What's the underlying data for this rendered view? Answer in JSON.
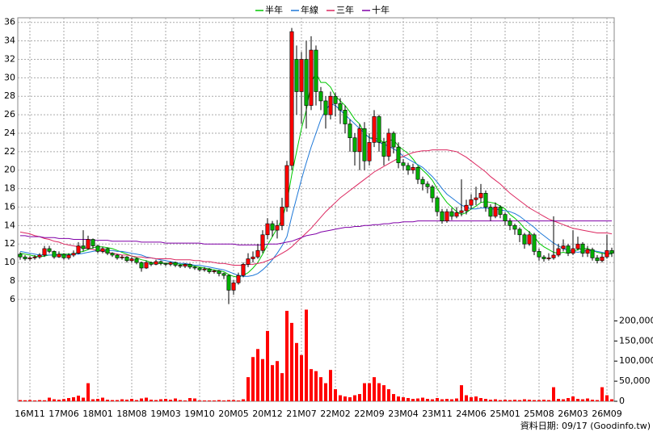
{
  "chart_data": {
    "type": "candlestick",
    "footer": "資料日期: 09/17 (Goodinfo.tw)",
    "grid": true,
    "up_color": "#ff0000",
    "down_color": "#00b000",
    "volume_color": "#ff0000",
    "categories": [
      null,
      null,
      "16M11",
      null,
      null,
      null,
      null,
      null,
      null,
      "17M06",
      null,
      null,
      null,
      null,
      null,
      null,
      "18M01",
      null,
      null,
      null,
      null,
      null,
      null,
      "18M08",
      null,
      null,
      null,
      null,
      null,
      null,
      "19M03",
      null,
      null,
      null,
      null,
      null,
      null,
      "19M10",
      null,
      null,
      null,
      null,
      null,
      null,
      "20M05",
      null,
      null,
      null,
      null,
      null,
      null,
      "20M12",
      null,
      null,
      null,
      null,
      null,
      null,
      "21M07",
      null,
      null,
      null,
      null,
      null,
      null,
      "22M02",
      null,
      null,
      null,
      null,
      null,
      null,
      "22M09",
      null,
      null,
      null,
      null,
      null,
      null,
      "23M04",
      null,
      null,
      null,
      null,
      null,
      null,
      "23M11",
      null,
      null,
      null,
      null,
      null,
      null,
      "24M06",
      null,
      null,
      null,
      null,
      null,
      null,
      "25M01",
      null,
      null,
      null,
      null,
      null,
      null,
      "25M08",
      null,
      null,
      null,
      null,
      null,
      null,
      "26M03",
      null,
      null,
      null,
      null,
      null,
      null,
      "26M09",
      null
    ],
    "open": [
      10.9,
      10.6,
      10.4,
      10.5,
      10.6,
      10.8,
      11.5,
      11.2,
      10.6,
      10.9,
      10.5,
      10.8,
      11.0,
      11.8,
      11.5,
      12.5,
      11.8,
      11.2,
      11.5,
      11.0,
      10.8,
      10.5,
      10.6,
      10.2,
      10.4,
      10.0,
      9.4,
      10.0,
      9.8,
      10.1,
      9.9,
      9.8,
      10.0,
      9.7,
      9.6,
      9.8,
      9.5,
      9.4,
      9.2,
      9.3,
      9.0,
      9.1,
      8.8,
      8.6,
      7.0,
      7.8,
      8.6,
      9.8,
      10.4,
      10.6,
      11.3,
      13.0,
      14.2,
      13.5,
      14.0,
      16.0,
      20.5,
      32.0,
      28.5,
      32.0,
      27.0,
      33.0,
      28.5,
      27.5,
      26.0,
      28.0,
      27.2,
      26.5,
      25.0,
      23.5,
      22.0,
      24.5,
      21.0,
      23.0,
      25.8,
      23.0,
      21.5,
      24.0,
      22.5,
      20.8,
      20.5,
      20.0,
      20.3,
      19.0,
      18.5,
      18.2,
      17.0,
      15.5,
      14.5,
      15.5,
      15.0,
      15.4,
      15.6,
      16.2,
      16.8,
      17.0,
      17.5,
      16.0,
      15.0,
      16.0,
      15.2,
      14.5,
      14.0,
      13.6,
      13.0,
      12.0,
      13.0,
      11.2,
      10.6,
      10.4,
      10.5,
      10.8,
      11.5,
      11.8,
      11.0,
      11.5,
      12.0,
      11.0,
      11.4,
      10.5,
      10.2,
      10.6,
      11.3
    ],
    "high": [
      11.1,
      10.8,
      10.7,
      10.8,
      11.0,
      11.8,
      11.8,
      11.3,
      11.2,
      11.0,
      11.0,
      11.3,
      12.2,
      13.5,
      12.9,
      12.6,
      11.9,
      11.7,
      11.6,
      11.1,
      10.9,
      10.8,
      10.7,
      10.6,
      10.5,
      10.1,
      10.2,
      10.1,
      10.3,
      10.2,
      10.0,
      10.1,
      10.1,
      9.8,
      9.9,
      9.9,
      9.6,
      9.5,
      9.5,
      9.4,
      9.2,
      9.2,
      8.9,
      8.7,
      8.1,
      8.9,
      10.0,
      11.0,
      11.2,
      12.0,
      13.5,
      14.8,
      14.5,
      14.6,
      17.0,
      21.0,
      35.4,
      33.5,
      32.8,
      34.0,
      34.5,
      33.5,
      29.0,
      28.0,
      28.5,
      28.4,
      27.8,
      27.0,
      25.5,
      24.0,
      25.0,
      25.2,
      24.0,
      26.5,
      26.0,
      23.5,
      24.5,
      24.2,
      23.0,
      21.2,
      20.8,
      20.7,
      20.4,
      19.3,
      18.8,
      18.4,
      17.2,
      15.8,
      15.8,
      15.9,
      16.0,
      19.0,
      16.8,
      17.4,
      18.2,
      18.5,
      17.8,
      16.3,
      16.5,
      16.2,
      15.4,
      14.8,
      14.2,
      13.8,
      13.2,
      13.4,
      13.2,
      11.5,
      10.8,
      11.0,
      15.0,
      12.0,
      12.5,
      12.0,
      13.5,
      12.8,
      12.2,
      11.8,
      11.6,
      10.8,
      11.0,
      13.0,
      11.6
    ],
    "low": [
      10.3,
      10.2,
      10.2,
      10.3,
      10.4,
      10.6,
      11.0,
      10.4,
      10.5,
      10.3,
      10.3,
      10.6,
      10.9,
      11.2,
      11.4,
      11.5,
      11.0,
      11.0,
      10.8,
      10.6,
      10.3,
      10.3,
      10.0,
      10.0,
      9.8,
      9.0,
      9.3,
      9.6,
      9.7,
      9.7,
      9.6,
      9.6,
      9.5,
      9.4,
      9.4,
      9.3,
      9.2,
      9.0,
      9.0,
      8.8,
      8.8,
      8.5,
      8.2,
      5.5,
      6.5,
      7.6,
      8.4,
      9.5,
      10.0,
      10.4,
      11.0,
      12.5,
      12.8,
      12.6,
      13.5,
      15.5,
      20.0,
      26.0,
      25.0,
      24.5,
      26.5,
      27.0,
      26.5,
      24.5,
      25.5,
      25.8,
      25.0,
      24.0,
      22.0,
      20.5,
      20.0,
      20.0,
      20.5,
      22.5,
      22.0,
      20.5,
      21.0,
      21.8,
      20.2,
      20.0,
      19.5,
      19.6,
      18.5,
      17.8,
      17.5,
      16.5,
      15.0,
      14.2,
      14.3,
      14.6,
      14.8,
      15.0,
      15.2,
      15.8,
      16.2,
      16.5,
      15.5,
      14.5,
      14.8,
      14.8,
      14.0,
      13.5,
      13.0,
      12.2,
      11.5,
      11.8,
      10.8,
      10.2,
      10.1,
      10.2,
      10.3,
      10.6,
      11.2,
      10.7,
      10.8,
      11.3,
      10.6,
      10.6,
      10.2,
      9.9,
      10.0,
      10.4,
      10.6
    ],
    "close": [
      10.6,
      10.4,
      10.5,
      10.6,
      10.8,
      11.5,
      11.2,
      10.6,
      10.9,
      10.5,
      10.8,
      11.0,
      11.8,
      11.5,
      12.5,
      11.8,
      11.2,
      11.5,
      11.0,
      10.8,
      10.5,
      10.6,
      10.2,
      10.4,
      10.0,
      9.4,
      10.0,
      9.8,
      10.1,
      9.9,
      9.8,
      10.0,
      9.7,
      9.6,
      9.8,
      9.5,
      9.4,
      9.2,
      9.3,
      9.0,
      9.1,
      8.8,
      8.6,
      7.0,
      7.8,
      8.6,
      9.8,
      10.4,
      10.6,
      11.3,
      13.0,
      14.2,
      13.5,
      14.0,
      16.0,
      20.5,
      35.0,
      28.5,
      32.0,
      27.0,
      33.0,
      28.5,
      27.5,
      26.0,
      28.0,
      27.2,
      26.5,
      25.0,
      23.5,
      22.0,
      24.5,
      21.0,
      23.0,
      25.8,
      23.0,
      21.5,
      24.0,
      22.5,
      20.8,
      20.5,
      20.0,
      20.3,
      19.0,
      18.5,
      18.2,
      17.0,
      15.5,
      14.5,
      15.5,
      15.0,
      15.4,
      15.6,
      16.2,
      16.8,
      17.0,
      17.5,
      16.0,
      15.0,
      16.0,
      15.2,
      14.5,
      14.0,
      13.6,
      13.0,
      12.0,
      13.0,
      11.2,
      10.6,
      10.4,
      10.5,
      10.8,
      11.5,
      11.8,
      11.0,
      11.5,
      12.0,
      11.0,
      11.4,
      10.5,
      10.2,
      10.6,
      11.3,
      11.0
    ],
    "volume": [
      3000,
      2500,
      3000,
      2000,
      3000,
      2500,
      9000,
      5000,
      4000,
      5500,
      8000,
      10000,
      14000,
      9000,
      45000,
      5000,
      6000,
      9000,
      4000,
      3000,
      3000,
      5000,
      4000,
      6000,
      3000,
      7000,
      9000,
      4000,
      3000,
      5000,
      6000,
      4000,
      7000,
      3000,
      2000,
      8000,
      7000,
      2000,
      2000,
      2000,
      2000,
      3000,
      2000,
      3000,
      3000,
      2000,
      5000,
      60000,
      110000,
      130000,
      105000,
      175000,
      90000,
      100000,
      70000,
      225000,
      195000,
      145000,
      115000,
      228000,
      80000,
      75000,
      60000,
      45000,
      78000,
      30000,
      15000,
      12000,
      10000,
      15000,
      18000,
      45000,
      45000,
      60000,
      45000,
      40000,
      30000,
      18000,
      12000,
      10000,
      8000,
      6000,
      7000,
      9000,
      6000,
      5000,
      8000,
      5000,
      6000,
      5000,
      7000,
      40000,
      15000,
      10000,
      12000,
      8000,
      6000,
      4000,
      5000,
      3000,
      4000,
      3000,
      4000,
      3000,
      5000,
      4000,
      3000,
      3000,
      4000,
      3000,
      35000,
      6000,
      5000,
      8000,
      12000,
      6000,
      5000,
      7000,
      4000,
      3000,
      35000,
      15000,
      5000
    ],
    "series": [
      {
        "name": "半年",
        "color": "#00c800",
        "values": [
          11.0,
          10.9,
          10.8,
          10.7,
          10.6,
          10.7,
          10.8,
          10.8,
          10.9,
          10.9,
          10.9,
          10.9,
          11.1,
          11.2,
          11.4,
          11.6,
          11.7,
          11.7,
          11.6,
          11.5,
          11.3,
          11.1,
          10.9,
          10.7,
          10.5,
          10.3,
          10.2,
          10.0,
          9.9,
          9.9,
          9.9,
          9.9,
          9.9,
          9.8,
          9.8,
          9.7,
          9.6,
          9.5,
          9.4,
          9.3,
          9.2,
          9.1,
          9.0,
          8.7,
          8.5,
          8.4,
          8.6,
          8.9,
          9.4,
          10.0,
          10.9,
          11.9,
          12.8,
          13.7,
          14.7,
          16.5,
          19.5,
          22.0,
          24.5,
          26.5,
          29.5,
          30.5,
          29.5,
          29.5,
          29.0,
          28.0,
          27.5,
          27.0,
          26.3,
          25.5,
          25.0,
          24.0,
          23.5,
          23.5,
          23.3,
          23.0,
          23.2,
          23.3,
          22.6,
          22.2,
          21.8,
          21.2,
          20.5,
          20.0,
          19.5,
          18.9,
          18.0,
          17.2,
          16.5,
          16.0,
          15.5,
          15.2,
          15.4,
          15.8,
          16.1,
          16.5,
          16.6,
          16.5,
          16.4,
          16.1,
          15.8,
          15.2,
          14.8,
          14.3,
          13.7,
          13.3,
          12.8,
          12.1,
          11.7,
          11.4,
          11.1,
          11.0,
          11.1,
          11.0,
          11.2,
          11.4,
          11.5,
          11.5,
          11.3,
          11.1,
          11.0,
          10.9,
          10.9
        ]
      },
      {
        "name": "年線",
        "color": "#1e78d8",
        "values": [
          11.2,
          11.1,
          11.0,
          10.9,
          10.8,
          10.8,
          10.8,
          10.8,
          10.8,
          10.8,
          10.8,
          10.9,
          10.9,
          11.0,
          11.1,
          11.2,
          11.3,
          11.3,
          11.3,
          11.3,
          11.2,
          11.2,
          11.1,
          11.0,
          10.9,
          10.8,
          10.6,
          10.5,
          10.4,
          10.3,
          10.2,
          10.1,
          10.0,
          9.9,
          9.9,
          9.8,
          9.7,
          9.7,
          9.6,
          9.5,
          9.4,
          9.3,
          9.2,
          9.0,
          8.8,
          8.6,
          8.5,
          8.5,
          8.6,
          8.8,
          9.2,
          9.7,
          10.3,
          11.0,
          11.8,
          12.8,
          15.0,
          17.0,
          19.0,
          20.8,
          22.5,
          24.0,
          25.5,
          26.5,
          27.2,
          27.0,
          26.5,
          26.0,
          25.5,
          25.0,
          24.5,
          24.0,
          23.5,
          23.3,
          23.0,
          22.8,
          22.6,
          22.3,
          22.0,
          21.5,
          21.2,
          20.9,
          20.6,
          20.3,
          19.8,
          19.3,
          18.7,
          18.0,
          17.4,
          17.0,
          16.6,
          16.2,
          16.0,
          15.8,
          15.8,
          15.9,
          15.9,
          15.8,
          15.8,
          15.7,
          15.6,
          15.5,
          15.3,
          15.0,
          14.6,
          14.2,
          13.8,
          13.3,
          12.9,
          12.5,
          12.1,
          11.8,
          11.5,
          11.3,
          11.2,
          11.1,
          11.2,
          11.3,
          11.3,
          11.2,
          11.1,
          11.0,
          11.0
        ]
      },
      {
        "name": "三年",
        "color": "#dc2860",
        "values": [
          13.3,
          13.2,
          13.1,
          12.9,
          12.8,
          12.6,
          12.5,
          12.3,
          12.2,
          12.0,
          11.9,
          11.8,
          11.7,
          11.6,
          11.5,
          11.4,
          11.3,
          11.2,
          11.1,
          11.0,
          10.9,
          10.8,
          10.8,
          10.7,
          10.6,
          10.6,
          10.5,
          10.5,
          10.4,
          10.4,
          10.4,
          10.4,
          10.3,
          10.3,
          10.3,
          10.3,
          10.2,
          10.2,
          10.1,
          10.1,
          10.0,
          9.9,
          9.9,
          9.8,
          9.7,
          9.7,
          9.7,
          9.8,
          9.8,
          9.9,
          10.0,
          10.2,
          10.4,
          10.7,
          11.0,
          11.3,
          11.7,
          12.2,
          12.7,
          13.2,
          13.7,
          14.3,
          14.9,
          15.5,
          16.0,
          16.5,
          17.0,
          17.4,
          17.8,
          18.2,
          18.6,
          19.0,
          19.4,
          19.8,
          20.1,
          20.4,
          20.7,
          21.0,
          21.3,
          21.5,
          21.7,
          21.9,
          22.0,
          22.1,
          22.1,
          22.2,
          22.2,
          22.2,
          22.2,
          22.1,
          22.0,
          21.7,
          21.4,
          21.0,
          20.6,
          20.2,
          19.8,
          19.3,
          18.9,
          18.5,
          18.0,
          17.5,
          17.1,
          16.7,
          16.3,
          15.9,
          15.6,
          15.3,
          15.0,
          14.7,
          14.5,
          14.3,
          14.1,
          13.9,
          13.7,
          13.6,
          13.5,
          13.4,
          13.3,
          13.2,
          13.2,
          13.2,
          13.1
        ]
      },
      {
        "name": "十年",
        "color": "#8000a8",
        "values": [
          12.9,
          12.9,
          12.8,
          12.8,
          12.8,
          12.7,
          12.7,
          12.7,
          12.6,
          12.6,
          12.6,
          12.5,
          12.5,
          12.5,
          12.5,
          12.4,
          12.4,
          12.4,
          12.4,
          12.3,
          12.3,
          12.3,
          12.3,
          12.3,
          12.3,
          12.2,
          12.2,
          12.2,
          12.2,
          12.2,
          12.1,
          12.1,
          12.1,
          12.1,
          12.1,
          12.1,
          12.1,
          12.1,
          12.0,
          12.0,
          12.0,
          12.0,
          12.0,
          12.0,
          12.0,
          11.9,
          11.9,
          11.9,
          11.9,
          11.9,
          11.9,
          12.0,
          12.0,
          12.0,
          12.1,
          12.2,
          12.3,
          12.5,
          12.7,
          12.9,
          13.0,
          13.1,
          13.3,
          13.4,
          13.5,
          13.6,
          13.7,
          13.8,
          13.8,
          13.9,
          13.9,
          14.0,
          14.0,
          14.1,
          14.1,
          14.2,
          14.2,
          14.3,
          14.3,
          14.4,
          14.4,
          14.4,
          14.5,
          14.5,
          14.5,
          14.5,
          14.5,
          14.5,
          14.5,
          14.5,
          14.5,
          14.5,
          14.5,
          14.5,
          14.5,
          14.5,
          14.5,
          14.5,
          14.5,
          14.5,
          14.5,
          14.5,
          14.5,
          14.5,
          14.5,
          14.5,
          14.5,
          14.5,
          14.5,
          14.5,
          14.5,
          14.5,
          14.5,
          14.5,
          14.5,
          14.5,
          14.5,
          14.5,
          14.5,
          14.5,
          14.5,
          14.5,
          14.5
        ]
      }
    ],
    "ylim": [
      5.2,
      36.5
    ],
    "yticks": [
      6,
      8,
      10,
      12,
      14,
      16,
      18,
      20,
      22,
      24,
      26,
      28,
      30,
      32,
      34,
      36
    ],
    "y2lim": [
      0,
      235000
    ],
    "y2ticks": [
      0,
      {
        "value": 50000,
        "label": "50,000"
      },
      {
        "value": 100000,
        "label": "100,000"
      },
      {
        "value": 150000,
        "label": "150,000"
      },
      {
        "value": 200000,
        "label": "200,000"
      }
    ]
  }
}
